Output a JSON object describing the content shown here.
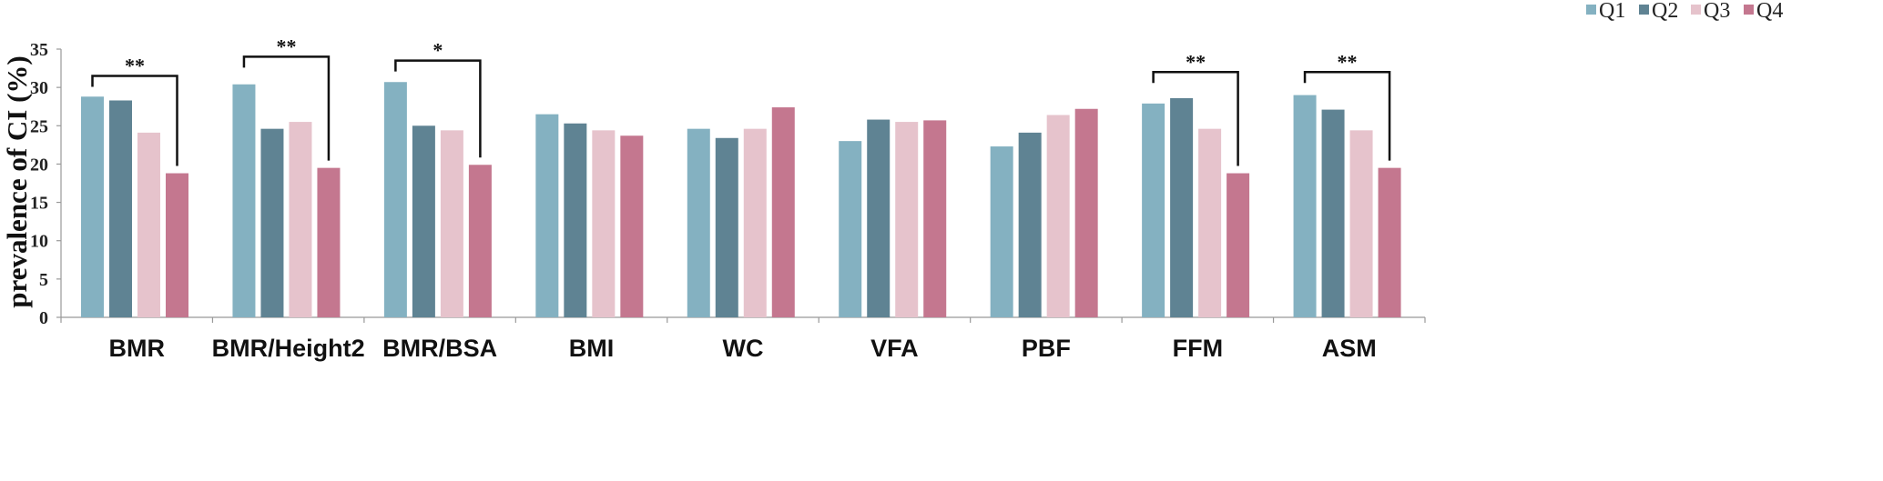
{
  "chart_data": {
    "type": "bar",
    "ylabel": "prevalence of CI (%)",
    "xlabel": "",
    "ylim": [
      0,
      35
    ],
    "yticks": [
      0,
      5,
      10,
      15,
      20,
      25,
      30,
      35
    ],
    "grid": false,
    "legend_position": "top-right",
    "categories": [
      "BMR",
      "BMR/Height2",
      "BMR/BSA",
      "BMI",
      "WC",
      "VFA",
      "PBF",
      "FFM",
      "ASM"
    ],
    "series": [
      {
        "name": "Q1",
        "color": "#84b1c1",
        "values": [
          28.8,
          30.4,
          30.7,
          26.5,
          24.6,
          23.0,
          22.3,
          27.9,
          29.0
        ]
      },
      {
        "name": "Q2",
        "color": "#5f8393",
        "values": [
          28.3,
          24.6,
          25.0,
          25.3,
          23.4,
          25.8,
          24.1,
          28.6,
          27.1
        ]
      },
      {
        "name": "Q3",
        "color": "#e6c3cc",
        "values": [
          24.1,
          25.5,
          24.4,
          24.4,
          24.6,
          25.5,
          26.4,
          24.6,
          24.4
        ]
      },
      {
        "name": "Q4",
        "color": "#c4778f",
        "values": [
          18.8,
          19.5,
          19.9,
          23.7,
          27.4,
          25.7,
          27.2,
          18.8,
          19.5
        ]
      }
    ],
    "annotations": [
      {
        "category_index": 0,
        "label": "**",
        "level": 31.5
      },
      {
        "category_index": 1,
        "label": "**",
        "level": 34.0
      },
      {
        "category_index": 2,
        "label": "*",
        "level": 33.5
      },
      {
        "category_index": 7,
        "label": "**",
        "level": 32.0
      },
      {
        "category_index": 8,
        "label": "**",
        "level": 32.0
      }
    ]
  }
}
